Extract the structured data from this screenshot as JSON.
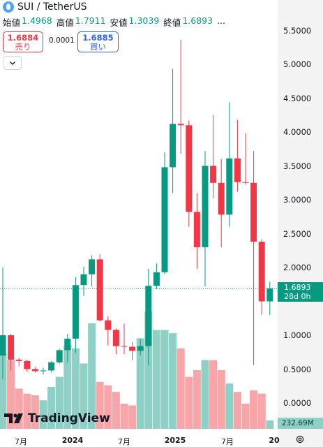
{
  "header": {
    "title": "SUI / TetherUS"
  },
  "ohlc": [
    {
      "label": "始値",
      "value": "1.4968"
    },
    {
      "label": "高値",
      "value": "1.7911"
    },
    {
      "label": "安値",
      "value": "1.3039"
    },
    {
      "label": "終値",
      "value": "1.6893"
    }
  ],
  "ohlc_more": "...",
  "trade": {
    "sell_price": "1.6884",
    "sell_label": "売り",
    "spread": "0.0001",
    "buy_price": "1.6885",
    "buy_label": "買い"
  },
  "price_scale": {
    "labels": [
      "5.5000",
      "5.0000",
      "4.5000",
      "4.0000",
      "3.5000",
      "3.0000",
      "2.5000",
      "2.0000",
      "1.0000",
      "0.5000",
      "0.0000"
    ],
    "last_price": "1.6893",
    "countdown": "28d 0h",
    "volume_value": "232.69M"
  },
  "time_axis": [
    {
      "label": "7月",
      "bold": false
    },
    {
      "label": "2024",
      "bold": true
    },
    {
      "label": "7月",
      "bold": false
    },
    {
      "label": "2025",
      "bold": true
    },
    {
      "label": "7月",
      "bold": false
    },
    {
      "label": "20",
      "bold": true
    }
  ],
  "branding": "TradingView",
  "colors": {
    "up": "#089981",
    "down": "#f23645",
    "vol_up": "#8fd0c6",
    "vol_down": "#f7a5a8",
    "scale_bg": "#f3f3f3",
    "buy": "#2962ff"
  },
  "chart_data": {
    "type": "candlestick",
    "interval": "1M",
    "ylim": [
      -0.3,
      5.8
    ],
    "last": 1.6893,
    "candles": [
      {
        "o": 0.7,
        "h": 2.0,
        "l": 0.35,
        "c": 1.0,
        "v": 90
      },
      {
        "o": 1.0,
        "h": 1.02,
        "l": 0.48,
        "c": 0.64,
        "v": 82
      },
      {
        "o": 0.64,
        "h": 0.67,
        "l": 0.54,
        "c": 0.62,
        "v": 48
      },
      {
        "o": 0.62,
        "h": 0.64,
        "l": 0.46,
        "c": 0.5,
        "v": 42
      },
      {
        "o": 0.5,
        "h": 0.53,
        "l": 0.45,
        "c": 0.47,
        "v": 40
      },
      {
        "o": 0.47,
        "h": 0.52,
        "l": 0.42,
        "c": 0.48,
        "v": 34
      },
      {
        "o": 0.48,
        "h": 0.62,
        "l": 0.45,
        "c": 0.6,
        "v": 50
      },
      {
        "o": 0.6,
        "h": 0.8,
        "l": 0.58,
        "c": 0.78,
        "v": 62
      },
      {
        "o": 0.78,
        "h": 1.02,
        "l": 0.6,
        "c": 0.95,
        "v": 100
      },
      {
        "o": 0.95,
        "h": 1.86,
        "l": 0.74,
        "c": 1.74,
        "v": 96
      },
      {
        "o": 1.74,
        "h": 2.01,
        "l": 1.58,
        "c": 1.9,
        "v": 78
      },
      {
        "o": 1.9,
        "h": 2.18,
        "l": 1.72,
        "c": 2.12,
        "v": 126
      },
      {
        "o": 2.12,
        "h": 2.2,
        "l": 1.2,
        "c": 1.22,
        "v": 56
      },
      {
        "o": 1.22,
        "h": 1.28,
        "l": 0.85,
        "c": 1.08,
        "v": 52
      },
      {
        "o": 1.08,
        "h": 1.1,
        "l": 0.72,
        "c": 0.84,
        "v": 44
      },
      {
        "o": 0.84,
        "h": 1.17,
        "l": 0.72,
        "c": 0.83,
        "v": 30
      },
      {
        "o": 0.83,
        "h": 0.9,
        "l": 0.63,
        "c": 0.77,
        "v": 28
      },
      {
        "o": 0.77,
        "h": 0.95,
        "l": 0.7,
        "c": 0.84,
        "v": 108
      },
      {
        "o": 0.84,
        "h": 1.98,
        "l": 0.55,
        "c": 1.73,
        "v": 140
      },
      {
        "o": 1.73,
        "h": 2.06,
        "l": 1.68,
        "c": 1.93,
        "v": 118
      },
      {
        "o": 1.93,
        "h": 3.7,
        "l": 1.9,
        "c": 3.48,
        "v": 118
      },
      {
        "o": 3.48,
        "h": 4.93,
        "l": 3.1,
        "c": 4.12,
        "v": 114
      },
      {
        "o": 4.12,
        "h": 5.36,
        "l": 3.68,
        "c": 4.1,
        "v": 96
      },
      {
        "o": 4.1,
        "h": 4.17,
        "l": 2.6,
        "c": 2.82,
        "v": 62
      },
      {
        "o": 2.82,
        "h": 3.1,
        "l": 1.98,
        "c": 2.3,
        "v": 70
      },
      {
        "o": 2.3,
        "h": 3.72,
        "l": 1.72,
        "c": 3.5,
        "v": 82
      },
      {
        "o": 3.5,
        "h": 4.25,
        "l": 3.02,
        "c": 3.25,
        "v": 82
      },
      {
        "o": 3.25,
        "h": 3.6,
        "l": 2.3,
        "c": 2.78,
        "v": 70
      },
      {
        "o": 2.78,
        "h": 4.44,
        "l": 2.6,
        "c": 3.61,
        "v": 54
      },
      {
        "o": 3.61,
        "h": 4.18,
        "l": 3.12,
        "c": 3.26,
        "v": 44
      },
      {
        "o": 3.26,
        "h": 3.98,
        "l": 3.22,
        "c": 3.25,
        "v": 30
      },
      {
        "o": 3.25,
        "h": 3.72,
        "l": 0.56,
        "c": 2.38,
        "v": 46
      },
      {
        "o": 2.38,
        "h": 2.42,
        "l": 1.3,
        "c": 1.5,
        "v": 42
      },
      {
        "o": 1.5,
        "h": 1.79,
        "l": 1.3,
        "c": 1.69,
        "v": 10
      }
    ]
  }
}
